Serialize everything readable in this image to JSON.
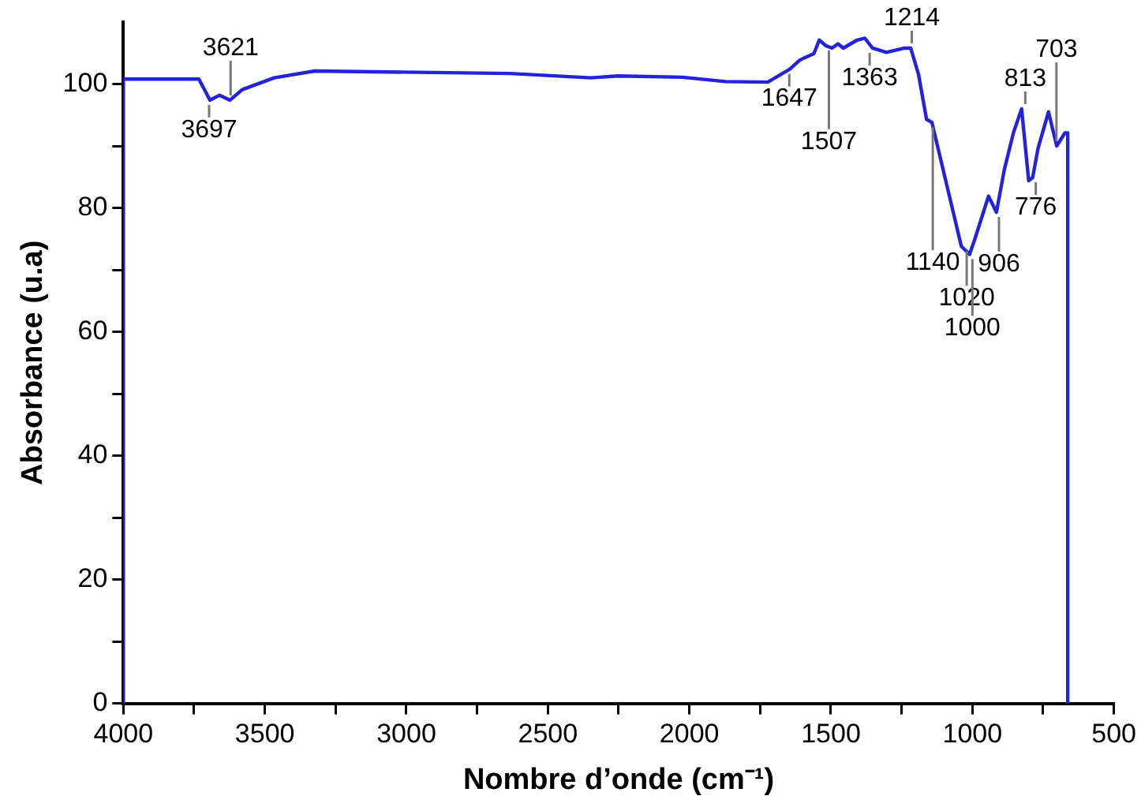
{
  "chart_data": {
    "type": "line",
    "xlabel": "Nombre d’onde (cm⁻¹)",
    "ylabel": "Absorbance (u.a)",
    "xlim": [
      4000,
      500
    ],
    "ylim": [
      0,
      110
    ],
    "xticks": [
      4000,
      {
        "value": 3750,
        "label": null
      },
      3500,
      {
        "value": 3250,
        "label": null
      },
      3000,
      {
        "value": 2750,
        "label": null
      },
      2500,
      {
        "value": 2250,
        "label": null
      },
      2000,
      {
        "value": 1750,
        "label": null
      },
      1500,
      {
        "value": 1250,
        "label": null
      },
      1000,
      {
        "value": 750,
        "label": null
      },
      500
    ],
    "yticks": [
      0,
      {
        "value": 10,
        "label": null
      },
      20,
      {
        "value": 30,
        "label": null
      },
      40,
      {
        "value": 50,
        "label": null
      },
      60,
      {
        "value": 70,
        "label": null
      },
      80,
      {
        "value": 90,
        "label": null
      },
      100
    ],
    "marker": "none",
    "line_style": "solid",
    "series": [
      {
        "color": "#2323dd",
        "x": [
          4000,
          4000,
          3733,
          3694,
          3660,
          3623,
          3580,
          3467,
          3324,
          2634,
          2349,
          2253,
          2025,
          1873,
          1723,
          1645,
          1609,
          1560,
          1541,
          1518,
          1496,
          1475,
          1456,
          1407,
          1380,
          1353,
          1304,
          1239,
          1218,
          1190,
          1162,
          1143,
          1039,
          1010,
          991,
          943,
          915,
          887,
          855,
          826,
          801,
          787,
          768,
          731,
          702,
          673,
          663,
          663
        ],
        "values": [
          0,
          100.8,
          100.8,
          97.4,
          98.2,
          97.4,
          99.1,
          101,
          102.1,
          101.7,
          101,
          101.3,
          101.1,
          100.4,
          100.3,
          102.4,
          103.9,
          104.9,
          107.1,
          106.2,
          105.8,
          106.5,
          105.8,
          107.1,
          107.4,
          105.8,
          105.1,
          105.8,
          105.8,
          101.5,
          94.3,
          93.8,
          73.8,
          72.5,
          75,
          81.9,
          79.3,
          86.2,
          92.1,
          96,
          84.4,
          84.9,
          89.6,
          95.5,
          90,
          92.1,
          92.1,
          0
        ]
      }
    ],
    "annotations": [
      {
        "text": "3697",
        "x": 3697,
        "y": 97.4
      },
      {
        "text": "3621",
        "x": 3621,
        "y": 97.4
      },
      {
        "text": "1647",
        "x": 1647,
        "y": 102.4
      },
      {
        "text": "1507",
        "x": 1507,
        "y": 106.2
      },
      {
        "text": "1363",
        "x": 1363,
        "y": 105.8
      },
      {
        "text": "1214",
        "x": 1214,
        "y": 105.8
      },
      {
        "text": "1140",
        "x": 1140,
        "y": 93.8
      },
      {
        "text": "1020",
        "x": 1020,
        "y": 73.8
      },
      {
        "text": "1000",
        "x": 1000,
        "y": 72.5
      },
      {
        "text": "906",
        "x": 906,
        "y": 79.3
      },
      {
        "text": "813",
        "x": 813,
        "y": 96
      },
      {
        "text": "776",
        "x": 776,
        "y": 84.9
      },
      {
        "text": "703",
        "x": 703,
        "y": 90
      }
    ]
  }
}
